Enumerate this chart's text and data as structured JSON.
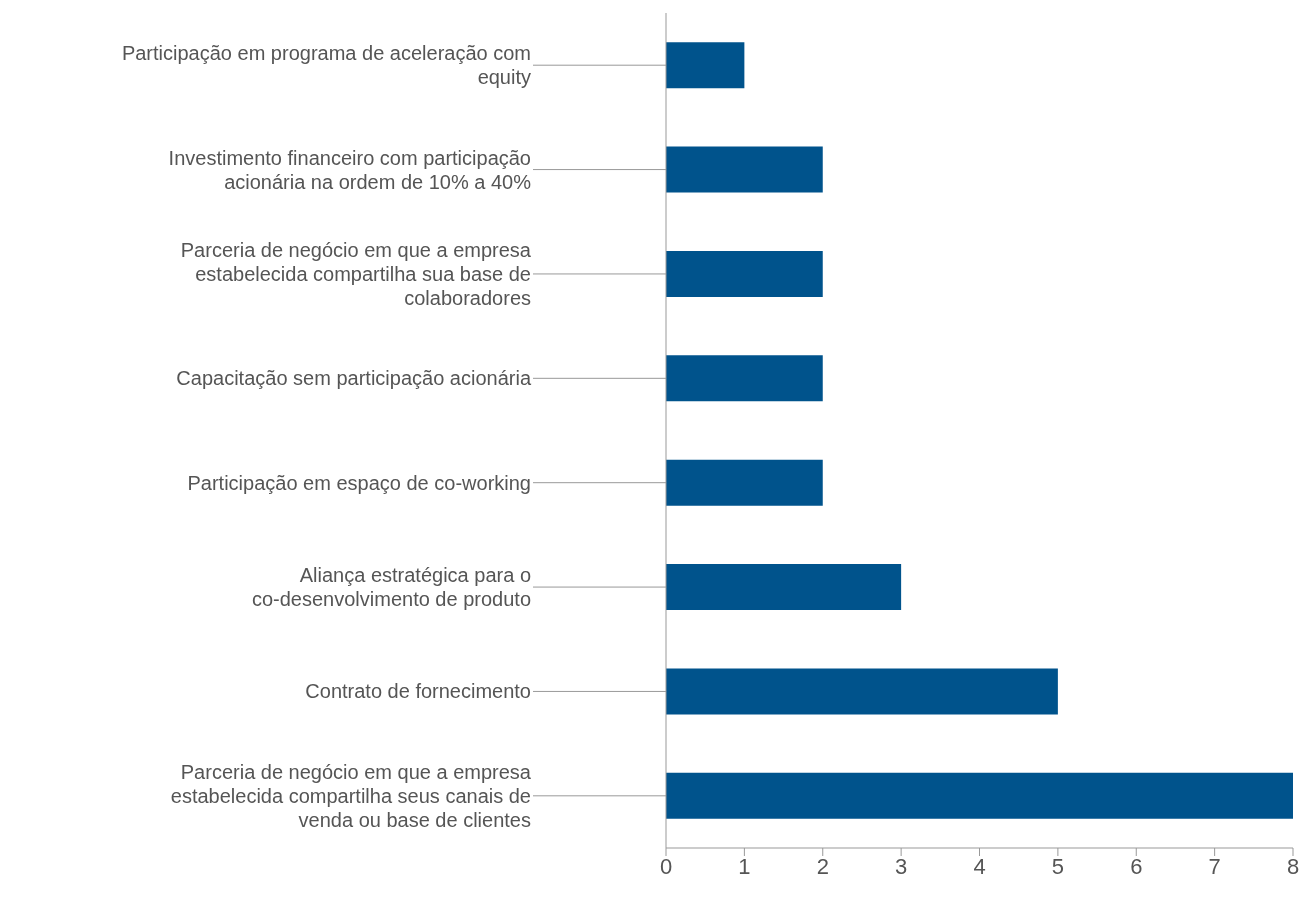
{
  "chart_data": {
    "type": "bar",
    "orientation": "horizontal",
    "categories": [
      "Participação em programa de aceleração com equity",
      "Investimento financeiro com participação acionária na ordem de 10% a 40%",
      "Parceria de negócio em que a empresa estabelecida compartilha sua base de colaboradores",
      "Capacitação sem participação acionária",
      "Participação em espaço de co-working",
      "Aliança estratégica para o co-desenvolvimento de produto",
      "Contrato de fornecimento",
      "Parceria de negócio em que a empresa estabelecida compartilha seus canais de venda ou base de clientes"
    ],
    "values": [
      1,
      2,
      2,
      2,
      2,
      3,
      5,
      8
    ],
    "color": "#00538c",
    "xlim": [
      0,
      8
    ],
    "xticks": [
      0,
      1,
      2,
      3,
      4,
      5,
      6,
      7,
      8
    ],
    "grid": false,
    "legend": false
  }
}
